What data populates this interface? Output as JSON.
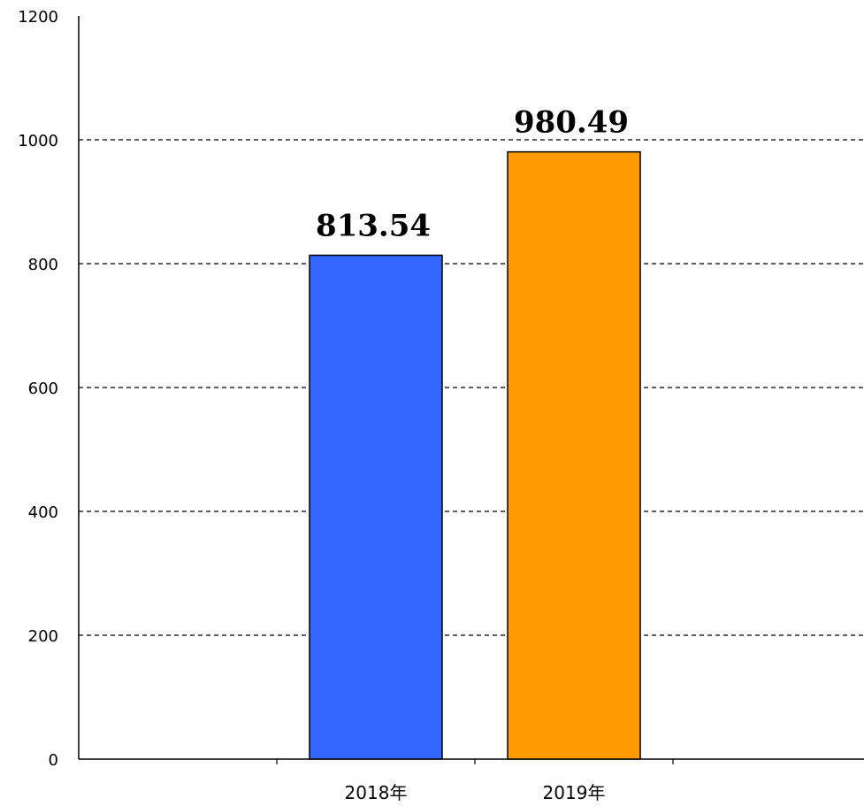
{
  "chart_data": {
    "type": "bar",
    "categories": [
      "2018年",
      "2019年"
    ],
    "values": [
      813.54,
      980.49
    ],
    "data_labels": [
      "813.54",
      "980.49"
    ],
    "colors": [
      "#3366FF",
      "#FF9900"
    ],
    "yticks": [
      "0",
      "200",
      "400",
      "600",
      "800",
      "1000",
      "1200"
    ],
    "ylim": [
      0,
      1200
    ],
    "grid": "horizontal-dashed",
    "title": "",
    "xlabel": "",
    "ylabel": ""
  }
}
